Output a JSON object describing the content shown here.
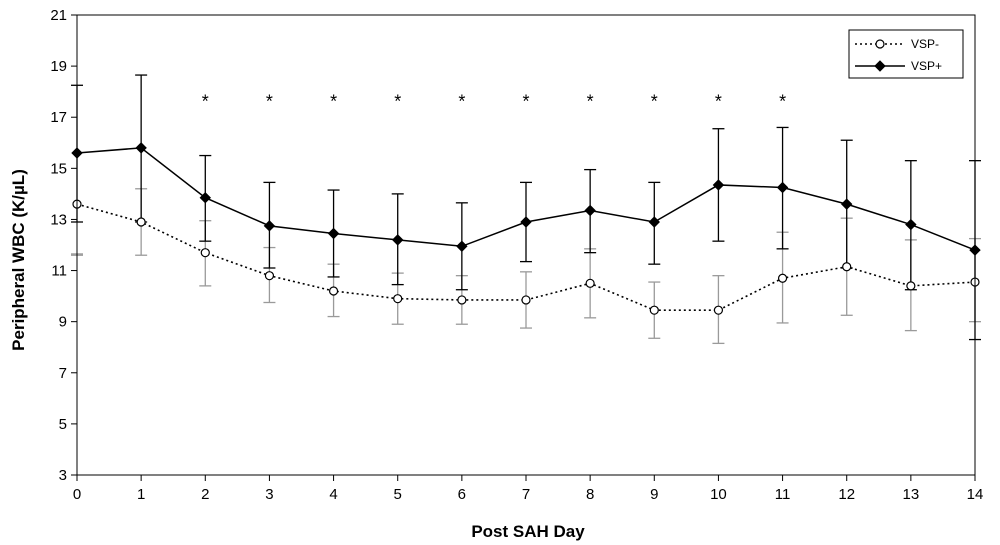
{
  "chart_data": {
    "type": "line",
    "xlabel": "Post SAH Day",
    "ylabel": "Peripheral WBC (K/µL)",
    "xlim": [
      0,
      14
    ],
    "ylim": [
      3,
      21
    ],
    "x": [
      0,
      1,
      2,
      3,
      4,
      5,
      6,
      7,
      8,
      9,
      10,
      11,
      12,
      13,
      14
    ],
    "x_ticks": [
      "0",
      "1",
      "2",
      "3",
      "4",
      "5",
      "6",
      "7",
      "8",
      "9",
      "10",
      "11",
      "12",
      "13",
      "14"
    ],
    "y_ticks": [
      "3",
      "5",
      "7",
      "9",
      "11",
      "13",
      "15",
      "17",
      "19",
      "21"
    ],
    "grid": false,
    "legend_position": "top-right",
    "series": [
      {
        "name": "VSP-",
        "style": "dotted",
        "marker": "open-circle",
        "color": "#000000",
        "errorbar_color": "#9a9a9a",
        "values": [
          13.6,
          12.9,
          11.7,
          10.8,
          10.2,
          9.9,
          9.85,
          9.85,
          10.5,
          9.45,
          9.45,
          10.7,
          11.15,
          10.4,
          10.55
        ],
        "error_upper": [
          11.65,
          14.2,
          12.95,
          11.9,
          11.25,
          10.9,
          10.8,
          10.95,
          11.85,
          10.55,
          10.8,
          12.5,
          13.05,
          12.2,
          12.25
        ],
        "error_lower": [
          11.6,
          11.6,
          10.4,
          9.75,
          9.2,
          8.9,
          8.9,
          8.75,
          9.15,
          8.35,
          8.15,
          8.95,
          9.25,
          8.65,
          9.0
        ]
      },
      {
        "name": "VSP+",
        "style": "solid",
        "marker": "filled-diamond",
        "color": "#000000",
        "errorbar_color": "#000000",
        "values": [
          15.6,
          15.8,
          13.85,
          12.75,
          12.45,
          12.2,
          11.95,
          12.9,
          13.35,
          12.9,
          14.35,
          14.25,
          13.6,
          12.8,
          11.8
        ],
        "error_upper": [
          18.25,
          18.65,
          15.5,
          14.45,
          14.15,
          14.0,
          13.65,
          14.45,
          14.95,
          14.45,
          16.55,
          16.6,
          16.1,
          15.3,
          15.3
        ],
        "error_lower": [
          12.9,
          12.9,
          12.15,
          11.1,
          10.75,
          10.45,
          10.25,
          11.35,
          11.7,
          11.25,
          12.15,
          11.85,
          11.1,
          10.25,
          8.3
        ]
      }
    ],
    "annotations": [
      {
        "text": "*",
        "x": 2,
        "y": 17.7
      },
      {
        "text": "*",
        "x": 3,
        "y": 17.7
      },
      {
        "text": "*",
        "x": 4,
        "y": 17.7
      },
      {
        "text": "*",
        "x": 5,
        "y": 17.7
      },
      {
        "text": "*",
        "x": 6,
        "y": 17.7
      },
      {
        "text": "*",
        "x": 7,
        "y": 17.7
      },
      {
        "text": "*",
        "x": 8,
        "y": 17.7
      },
      {
        "text": "*",
        "x": 9,
        "y": 17.7
      },
      {
        "text": "*",
        "x": 10,
        "y": 17.7
      },
      {
        "text": "*",
        "x": 11,
        "y": 17.7
      }
    ]
  }
}
